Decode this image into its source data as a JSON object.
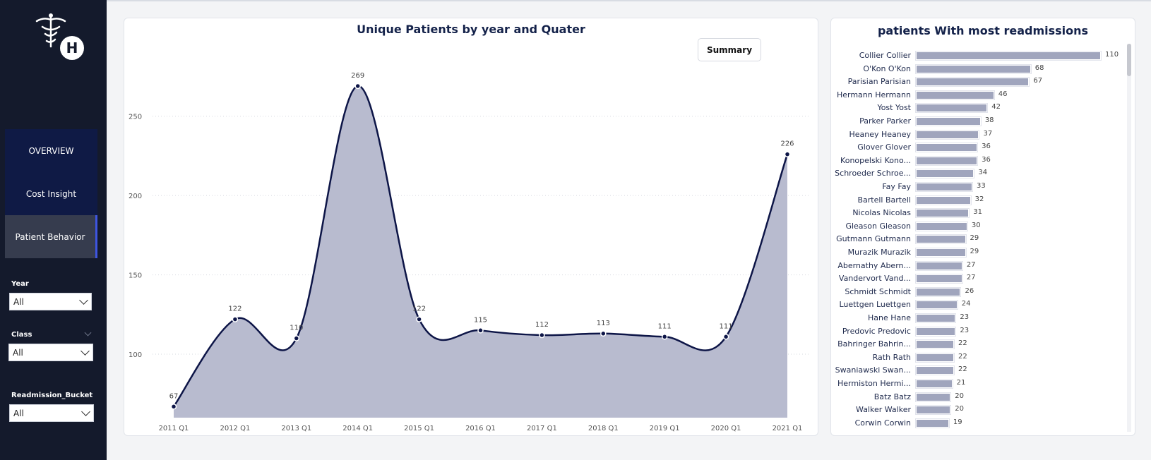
{
  "sidebar": {
    "logo_letter": "H",
    "nav": [
      {
        "label": "OVERVIEW"
      },
      {
        "label": "Cost Insight"
      },
      {
        "label": "Patient Behavior"
      }
    ],
    "filters": [
      {
        "label": "Year",
        "value": "All"
      },
      {
        "label": "Class",
        "value": "All"
      },
      {
        "label": "Readmission_Bucket",
        "value": "All"
      }
    ]
  },
  "area_chart": {
    "title": "Unique Patients by year and Quater",
    "summary_label": "Summary"
  },
  "bar_chart": {
    "title": "patients With most readmissions"
  },
  "chart_data": [
    {
      "type": "area",
      "title": "Unique Patients by year and Quater",
      "categories": [
        "2011 Q1",
        "2012 Q1",
        "2013 Q1",
        "2014 Q1",
        "2015 Q1",
        "2016 Q1",
        "2017 Q1",
        "2018 Q1",
        "2019 Q1",
        "2020 Q1",
        "2021 Q1"
      ],
      "values": [
        67,
        122,
        110,
        269,
        122,
        115,
        112,
        113,
        111,
        111,
        226
      ],
      "yticks": [
        100,
        150,
        200,
        250
      ],
      "ylim": [
        60,
        285
      ],
      "grid": true,
      "colors": {
        "line": "#0d1547",
        "fill": "#b8bbcf"
      }
    },
    {
      "type": "bar",
      "orientation": "horizontal",
      "title": "patients With most readmissions",
      "categories": [
        "Collier Collier",
        "O'Kon O'Kon",
        "Parisian Parisian",
        "Hermann Hermann",
        "Yost Yost",
        "Parker Parker",
        "Heaney Heaney",
        "Glover Glover",
        "Konopelski Kono...",
        "Schroeder Schroe...",
        "Fay Fay",
        "Bartell Bartell",
        "Nicolas Nicolas",
        "Gleason Gleason",
        "Gutmann Gutmann",
        "Murazik Murazik",
        "Abernathy Abern...",
        "Vandervort Vand...",
        "Schmidt Schmidt",
        "Luettgen Luettgen",
        "Hane Hane",
        "Predovic Predovic",
        "Bahringer Bahrin...",
        "Rath Rath",
        "Swaniawski Swan...",
        "Hermiston Hermi...",
        "Batz Batz",
        "Walker Walker",
        "Corwin Corwin"
      ],
      "values": [
        110,
        68,
        67,
        46,
        42,
        38,
        37,
        36,
        36,
        34,
        33,
        32,
        31,
        30,
        29,
        29,
        27,
        27,
        26,
        24,
        23,
        23,
        22,
        22,
        22,
        21,
        20,
        20,
        19
      ],
      "colors": {
        "bar": "#a0a5bd"
      }
    }
  ]
}
